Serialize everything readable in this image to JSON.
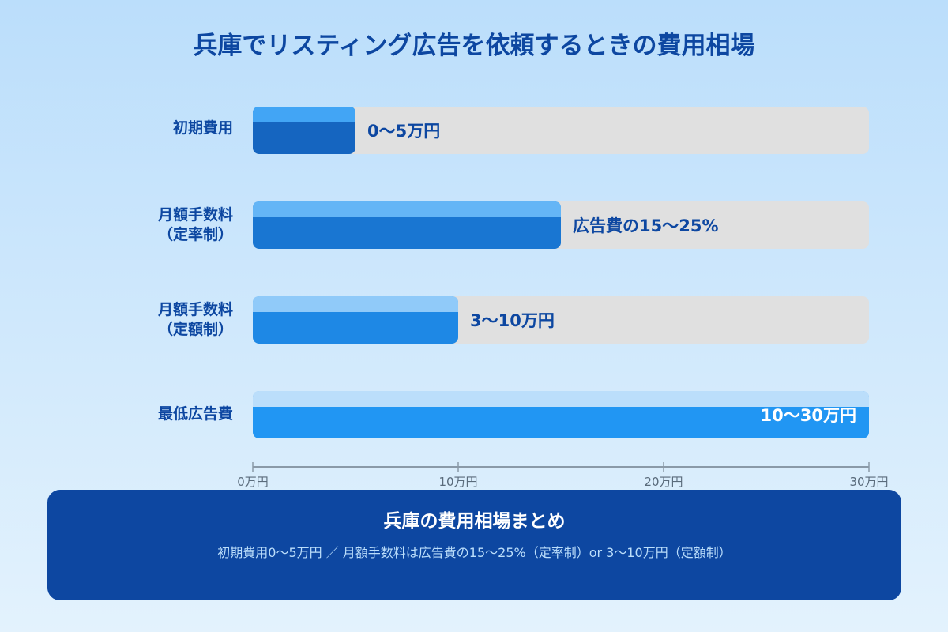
{
  "chart_data": {
    "type": "bar",
    "orientation": "horizontal",
    "title": "兵庫でリスティング広告を依頼するときの費用相場",
    "categories": [
      "初期費用",
      "月額手数料\n（定率制）",
      "月額手数料\n（定額制）",
      "最低広告費"
    ],
    "values": [
      5,
      15,
      10,
      30
    ],
    "data_labels": [
      "0〜5万円",
      "広告費の15〜25%",
      "3〜10万円",
      "10〜30万円"
    ],
    "xlim": [
      0,
      30
    ],
    "xticks": [
      0,
      10,
      20,
      30
    ],
    "xtick_labels": [
      "0万円",
      "10万円",
      "20万円",
      "30万円"
    ],
    "grid": false,
    "colors": {
      "bars": [
        "#1565c0",
        "#1976d2",
        "#1e88e5",
        "#2196f3"
      ],
      "bar_tops": [
        "#42a5f5",
        "#64b5f6",
        "#90caf9",
        "#bbdefb"
      ],
      "track": "#e0e0e0",
      "text": "#0d47a1"
    }
  },
  "summary": {
    "title": "兵庫の費用相場まとめ",
    "text": "初期費用0〜5万円 ／ 月額手数料は広告費の15〜25%（定率制）or 3〜10万円（定額制）"
  }
}
